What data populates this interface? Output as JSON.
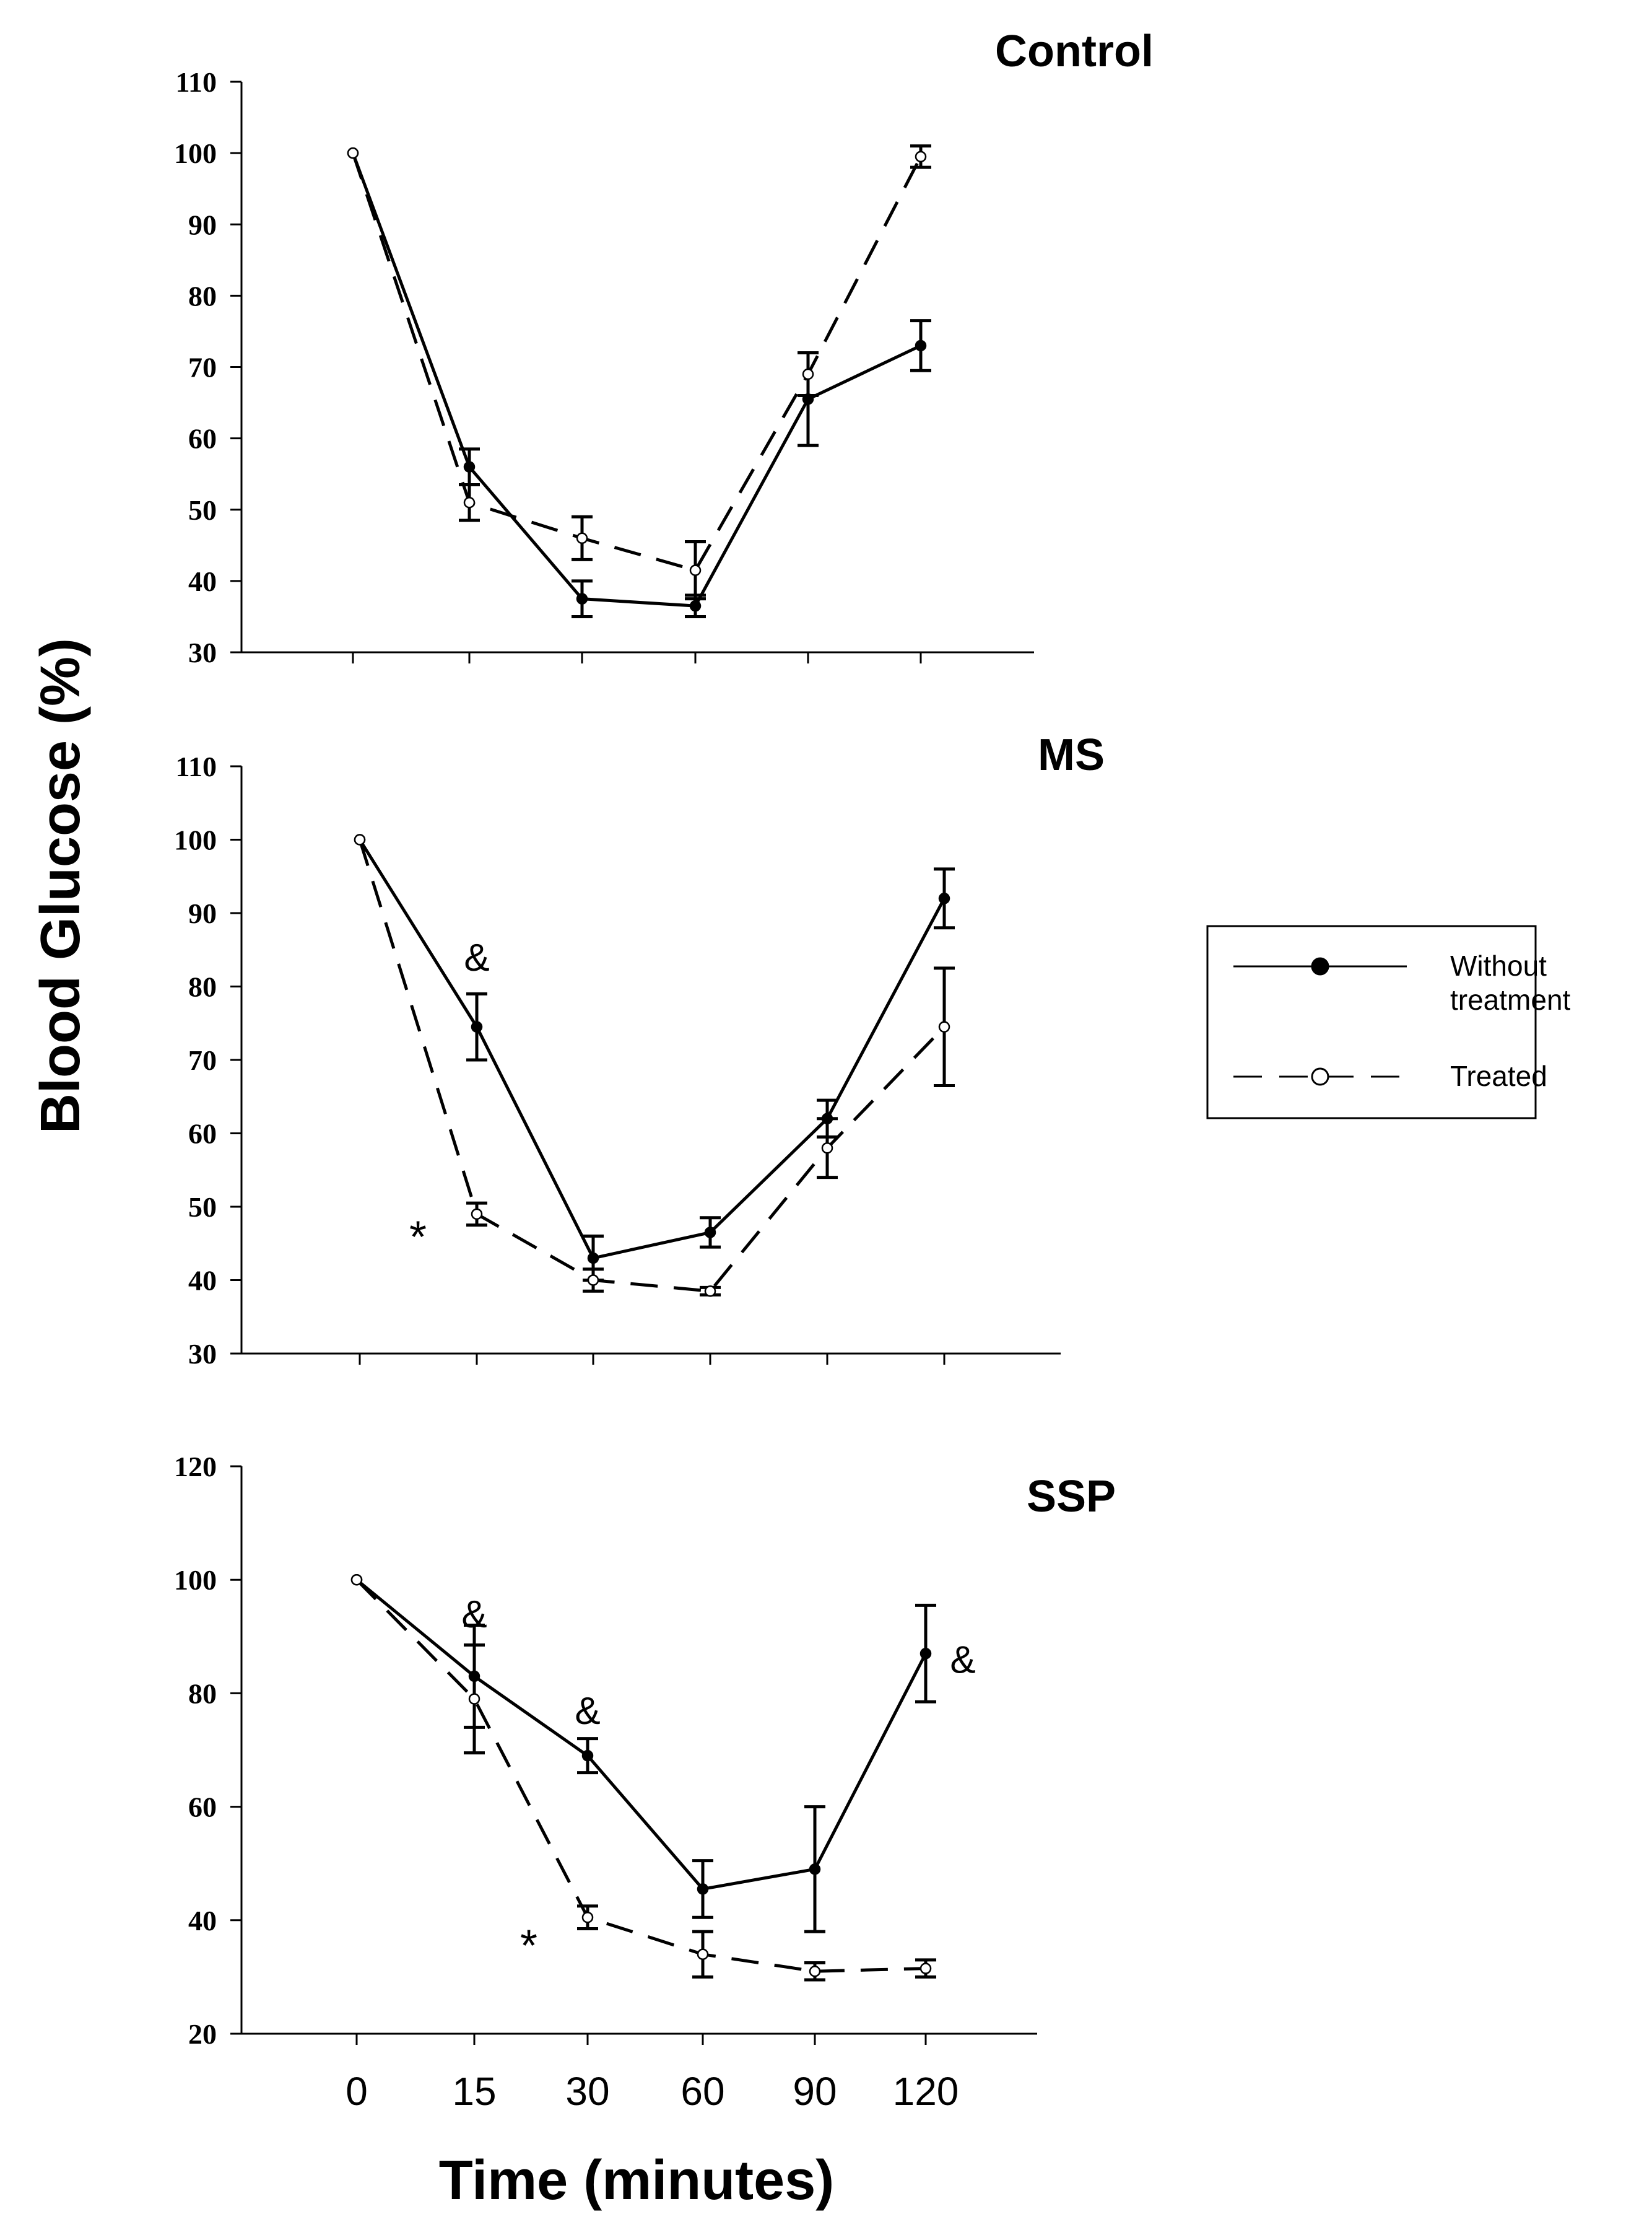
{
  "ylabel": "Blood Glucose (%)",
  "xlabel": "Time (minutes)",
  "legend": {
    "items": [
      {
        "label_lines": [
          "Without",
          "treatment"
        ],
        "style": "solid",
        "marker": "filled"
      },
      {
        "label_lines": [
          "Treated"
        ],
        "style": "dashed",
        "marker": "open"
      }
    ]
  },
  "colors": {
    "line": "#000000",
    "background": "#ffffff"
  },
  "chart_data": [
    {
      "type": "line",
      "title": "Control",
      "categories": [
        "0",
        "15",
        "30",
        "60",
        "90",
        "120"
      ],
      "ylim": [
        30,
        110
      ],
      "yticks": [
        30,
        40,
        50,
        60,
        70,
        80,
        90,
        100,
        110
      ],
      "series": [
        {
          "name": "Without treatment",
          "values": [
            100,
            56,
            37.5,
            36.5,
            65.5,
            73
          ],
          "errors": [
            0,
            2.5,
            2.5,
            1.5,
            6.5,
            3.5
          ]
        },
        {
          "name": "Treated",
          "values": [
            100,
            51,
            46,
            41.5,
            69,
            99.5
          ],
          "errors": [
            0,
            2.5,
            3,
            4,
            3,
            1.5
          ]
        }
      ],
      "annotations": []
    },
    {
      "type": "line",
      "title": "MS",
      "categories": [
        "0",
        "15",
        "30",
        "60",
        "90",
        "120"
      ],
      "ylim": [
        30,
        110
      ],
      "yticks": [
        30,
        40,
        50,
        60,
        70,
        80,
        90,
        100,
        110
      ],
      "series": [
        {
          "name": "Without treatment",
          "values": [
            100,
            74.5,
            43,
            46.5,
            62,
            92
          ],
          "errors": [
            0,
            4.5,
            3,
            2,
            2.5,
            4
          ]
        },
        {
          "name": "Treated",
          "values": [
            100,
            49,
            40,
            38.5,
            58,
            74.5
          ],
          "errors": [
            0,
            1.5,
            1.5,
            0.5,
            4,
            8
          ]
        }
      ],
      "annotations": [
        {
          "text": "&",
          "x": "15",
          "y": 84
        },
        {
          "text": "*",
          "x": "15",
          "y": 47,
          "offset": "left"
        }
      ]
    },
    {
      "type": "line",
      "title": "SSP",
      "categories": [
        "0",
        "15",
        "30",
        "60",
        "90",
        "120"
      ],
      "ylim": [
        20,
        120
      ],
      "yticks": [
        20,
        40,
        60,
        80,
        100,
        120
      ],
      "series": [
        {
          "name": "Without treatment",
          "values": [
            100,
            83,
            69,
            45.5,
            49,
            87
          ],
          "errors": [
            0,
            9,
            3,
            5,
            11,
            8.5
          ]
        },
        {
          "name": "Treated",
          "values": [
            100,
            79,
            40.5,
            34,
            31,
            31.5
          ],
          "errors": [
            0,
            9.5,
            2,
            4,
            1.5,
            1.5
          ]
        }
      ],
      "annotations": [
        {
          "text": "&",
          "x": "15",
          "y": 94
        },
        {
          "text": "&",
          "x": "30",
          "y": 77
        },
        {
          "text": "&",
          "x": "120",
          "y": 86,
          "offset": "right"
        },
        {
          "text": "*",
          "x": "30",
          "y": 37,
          "offset": "left"
        }
      ]
    }
  ]
}
